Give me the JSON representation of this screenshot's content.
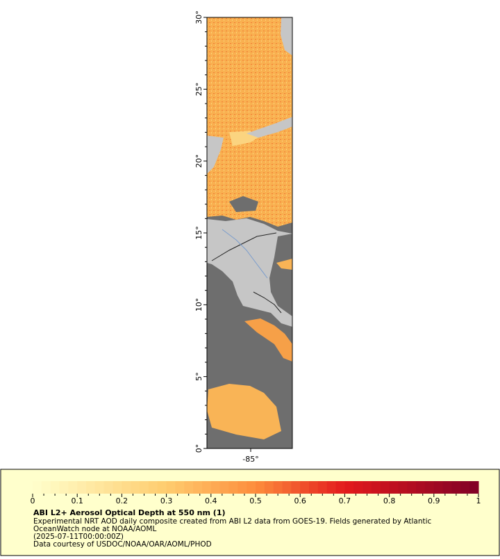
{
  "map": {
    "y_axis_labels": [
      "30°",
      "25°",
      "20°",
      "15°",
      "10°",
      "5°",
      "0°"
    ],
    "x_axis_labels": [
      "-85°"
    ]
  },
  "legend": {
    "colorbar_ticks": [
      "0",
      "0.1",
      "0.2",
      "0.3",
      "0.4",
      "0.5",
      "0.6",
      "0.7",
      "0.8",
      "0.9",
      "1"
    ],
    "title": "ABI L2+ Aerosol Optical Depth at 550 nm (1)",
    "description": [
      "Experimental NRT AOD daily composite created from ABI L2 data from GOES-19. Fields generated by Atlantic",
      "OceanWatch node at NOAA/AOML",
      "(2025-07-11T00:00:00Z)",
      "Data courtesy of USDOC/NOAA/OAR/AOML/PHOD"
    ]
  }
}
